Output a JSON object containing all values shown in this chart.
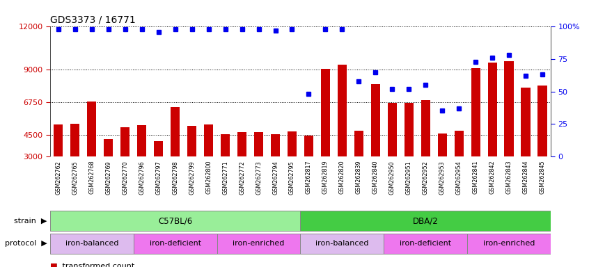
{
  "title": "GDS3373 / 16771",
  "samples": [
    "GSM262762",
    "GSM262765",
    "GSM262768",
    "GSM262769",
    "GSM262770",
    "GSM262796",
    "GSM262797",
    "GSM262798",
    "GSM262799",
    "GSM262800",
    "GSM262771",
    "GSM262772",
    "GSM262773",
    "GSM262794",
    "GSM262795",
    "GSM262817",
    "GSM262819",
    "GSM262820",
    "GSM262839",
    "GSM262840",
    "GSM262950",
    "GSM262951",
    "GSM262952",
    "GSM262953",
    "GSM262954",
    "GSM262841",
    "GSM262842",
    "GSM262843",
    "GSM262844",
    "GSM262845"
  ],
  "bar_values": [
    5200,
    5250,
    6800,
    4200,
    5000,
    5150,
    4050,
    6400,
    5100,
    5200,
    4550,
    4650,
    4650,
    4550,
    4700,
    4450,
    9050,
    9350,
    4750,
    8000,
    6700,
    6700,
    6900,
    4600,
    4750,
    9100,
    9500,
    9600,
    7750,
    7900
  ],
  "percentile_values": [
    98,
    98,
    98,
    98,
    98,
    98,
    96,
    98,
    98,
    98,
    98,
    98,
    98,
    97,
    98,
    48,
    98,
    98,
    58,
    65,
    52,
    52,
    55,
    35,
    37,
    73,
    76,
    78,
    62,
    63
  ],
  "bar_color": "#cc0000",
  "percentile_color": "#0000ee",
  "ylim_left": [
    3000,
    12000
  ],
  "yticks_left": [
    3000,
    4500,
    6750,
    9000,
    12000
  ],
  "ytick_labels_left": [
    "3000",
    "4500",
    "6750",
    "9000",
    "12000"
  ],
  "ylim_right": [
    0,
    100
  ],
  "yticks_right": [
    0,
    25,
    50,
    75,
    100
  ],
  "ytick_labels_right": [
    "0",
    "25",
    "50",
    "75",
    "100%"
  ],
  "strain_groups": [
    {
      "label": "C57BL/6",
      "start": 0,
      "end": 14,
      "color": "#99ee99"
    },
    {
      "label": "DBA/2",
      "start": 15,
      "end": 29,
      "color": "#44cc44"
    }
  ],
  "protocol_groups": [
    {
      "label": "iron-balanced",
      "start": 0,
      "end": 4,
      "color": "#ddaaee"
    },
    {
      "label": "iron-deficient",
      "start": 5,
      "end": 9,
      "color": "#ee66ee"
    },
    {
      "label": "iron-enriched",
      "start": 10,
      "end": 14,
      "color": "#ee66ee"
    },
    {
      "label": "iron-balanced",
      "start": 15,
      "end": 19,
      "color": "#ddaaee"
    },
    {
      "label": "iron-deficient",
      "start": 20,
      "end": 24,
      "color": "#ee66ee"
    },
    {
      "label": "iron-enriched",
      "start": 25,
      "end": 29,
      "color": "#ee66ee"
    }
  ],
  "background_color": "#ffffff",
  "title_fontsize": 10,
  "bar_width": 0.55,
  "strain_label_color": "#888888",
  "protocol_label_color": "#888888",
  "xtick_bg_color": "#d0d0d0",
  "xtick_separator_color": "#ffffff"
}
